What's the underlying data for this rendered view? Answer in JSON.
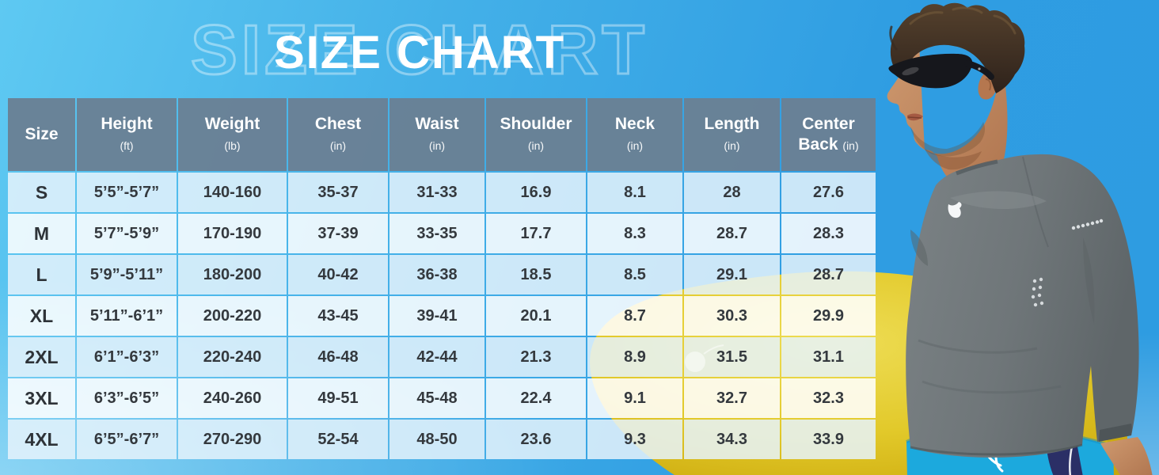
{
  "title": {
    "main": "SIZE CHART",
    "watermark": "SIZE CHART"
  },
  "chart_data": {
    "type": "table",
    "title": "SIZE CHART",
    "columns": [
      {
        "label": "Size",
        "label2": "",
        "unit": ""
      },
      {
        "label": "Height",
        "label2": "",
        "unit": "(ft)"
      },
      {
        "label": "Weight",
        "label2": "",
        "unit": "(lb)"
      },
      {
        "label": "Chest",
        "label2": "",
        "unit": "(in)"
      },
      {
        "label": "Waist",
        "label2": "",
        "unit": "(in)"
      },
      {
        "label": "Shoulder",
        "label2": "",
        "unit": "(in)"
      },
      {
        "label": "Neck",
        "label2": "",
        "unit": "(in)"
      },
      {
        "label": "Length",
        "label2": "",
        "unit": "(in)"
      },
      {
        "label": "Center",
        "label2": "Back",
        "unit": "(in)"
      }
    ],
    "rows": [
      [
        "S",
        "5’5”-5’7”",
        "140-160",
        "35-37",
        "31-33",
        "16.9",
        "8.1",
        "28",
        "27.6"
      ],
      [
        "M",
        "5’7”-5’9”",
        "170-190",
        "37-39",
        "33-35",
        "17.7",
        "8.3",
        "28.7",
        "28.3"
      ],
      [
        "L",
        "5’9”-5’11”",
        "180-200",
        "40-42",
        "36-38",
        "18.5",
        "8.5",
        "29.1",
        "28.7"
      ],
      [
        "XL",
        "5’11”-6’1”",
        "200-220",
        "43-45",
        "39-41",
        "20.1",
        "8.7",
        "30.3",
        "29.9"
      ],
      [
        "2XL",
        "6’1”-6’3”",
        "220-240",
        "46-48",
        "42-44",
        "21.3",
        "8.9",
        "31.5",
        "31.1"
      ],
      [
        "3XL",
        "6’3”-6’5”",
        "240-260",
        "49-51",
        "45-48",
        "22.4",
        "9.1",
        "32.7",
        "32.3"
      ],
      [
        "4XL",
        "6’5”-6’7”",
        "270-290",
        "52-54",
        "48-50",
        "23.6",
        "9.3",
        "34.3",
        "33.9"
      ]
    ]
  },
  "scene": {
    "elements": [
      "male-model-photo",
      "yellow-surfboard",
      "sunglasses",
      "gray-long-sleeve-shirt",
      "blue-board-shorts"
    ],
    "colors": {
      "sky_top": "#5ec9f2",
      "sky_deep": "#2f9de2",
      "surfboard": "#e2c92a",
      "shirt_gray": "#6f7679",
      "shorts_blue": "#1ca9dd",
      "header_bg": "#6a8094",
      "row_tint": "#d9ecf9"
    }
  }
}
